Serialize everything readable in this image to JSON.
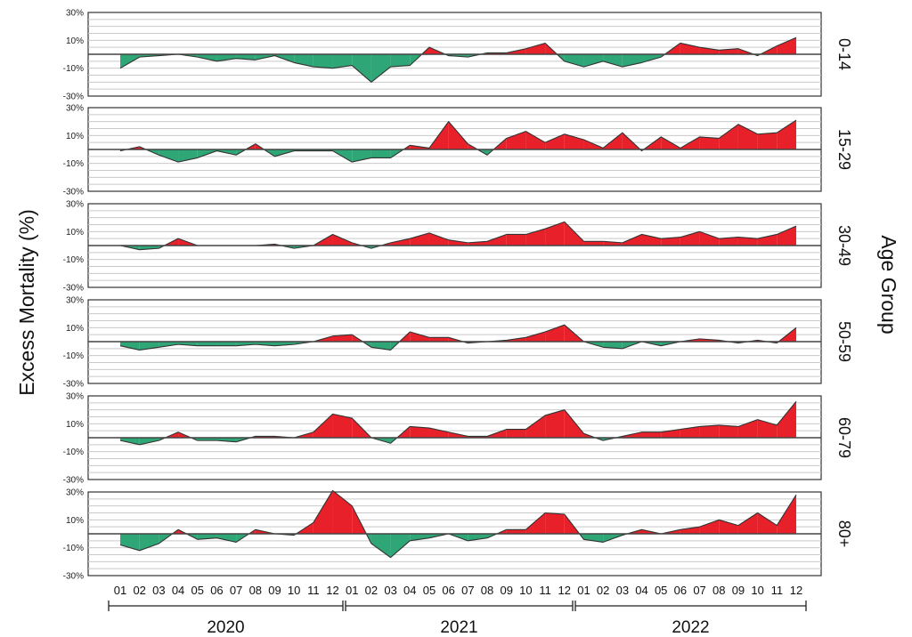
{
  "chart_data": {
    "type": "area",
    "ylabel": "Excess Mortality (%)",
    "right_label": "Age Group",
    "ylim": [
      -30,
      30
    ],
    "y_ticks": [
      30,
      10,
      -10,
      -30
    ],
    "y_tick_labels": [
      "30%",
      "10%",
      "-10%",
      "-30%"
    ],
    "grid": true,
    "positive_color": "#e8202a",
    "negative_color": "#2ea676",
    "months": [
      "01",
      "02",
      "03",
      "04",
      "05",
      "06",
      "07",
      "08",
      "09",
      "10",
      "11",
      "12",
      "01",
      "02",
      "03",
      "04",
      "05",
      "06",
      "07",
      "08",
      "09",
      "10",
      "11",
      "12",
      "01",
      "02",
      "03",
      "04",
      "05",
      "06",
      "07",
      "08",
      "09",
      "10",
      "11",
      "12"
    ],
    "years": [
      "2020",
      "2021",
      "2022"
    ],
    "series": [
      {
        "name": "0-14",
        "values": [
          -10,
          -2,
          -1,
          0,
          -2,
          -5,
          -3,
          -4,
          -1,
          -6,
          -9,
          -10,
          -8,
          -20,
          -9,
          -8,
          5,
          -1,
          -2,
          1,
          1,
          4,
          8,
          -5,
          -9,
          -5,
          -9,
          -6,
          -2,
          8,
          5,
          3,
          4,
          -1,
          6,
          12
        ]
      },
      {
        "name": "15-29",
        "values": [
          -1,
          2,
          -4,
          -9,
          -6,
          -1,
          -4,
          4,
          -5,
          -1,
          -1,
          -1,
          -9,
          -6,
          -6,
          3,
          1,
          20,
          4,
          -4,
          8,
          13,
          5,
          11,
          7,
          1,
          12,
          -1,
          9,
          1,
          9,
          8,
          18,
          11,
          12,
          21
        ]
      },
      {
        "name": "30-49",
        "values": [
          0,
          -3,
          -2,
          5,
          0,
          0,
          0,
          0,
          1,
          -2,
          0,
          8,
          2,
          -2,
          2,
          5,
          9,
          4,
          2,
          3,
          8,
          8,
          12,
          17,
          3,
          3,
          2,
          8,
          5,
          6,
          10,
          5,
          6,
          5,
          8,
          14
        ]
      },
      {
        "name": "50-59",
        "values": [
          -3,
          -6,
          -4,
          -2,
          -3,
          -3,
          -3,
          -2,
          -3,
          -2,
          0,
          4,
          5,
          -4,
          -6,
          7,
          3,
          3,
          -1,
          0,
          1,
          3,
          7,
          12,
          0,
          -4,
          -5,
          0,
          -3,
          0,
          2,
          1,
          -1,
          1,
          -1,
          10
        ]
      },
      {
        "name": "60-79",
        "values": [
          -2,
          -5,
          -2,
          4,
          -2,
          -2,
          -3,
          1,
          1,
          0,
          4,
          17,
          14,
          0,
          -4,
          8,
          7,
          4,
          1,
          1,
          6,
          6,
          16,
          20,
          3,
          -2,
          1,
          4,
          4,
          6,
          8,
          9,
          8,
          13,
          9,
          26
        ]
      },
      {
        "name": "80+",
        "values": [
          -8,
          -12,
          -7,
          3,
          -4,
          -3,
          -6,
          3,
          0,
          -1,
          8,
          31,
          20,
          -7,
          -17,
          -5,
          -3,
          0,
          -5,
          -3,
          3,
          3,
          15,
          14,
          -4,
          -6,
          -1,
          3,
          0,
          3,
          5,
          10,
          6,
          15,
          6,
          28
        ]
      }
    ]
  }
}
